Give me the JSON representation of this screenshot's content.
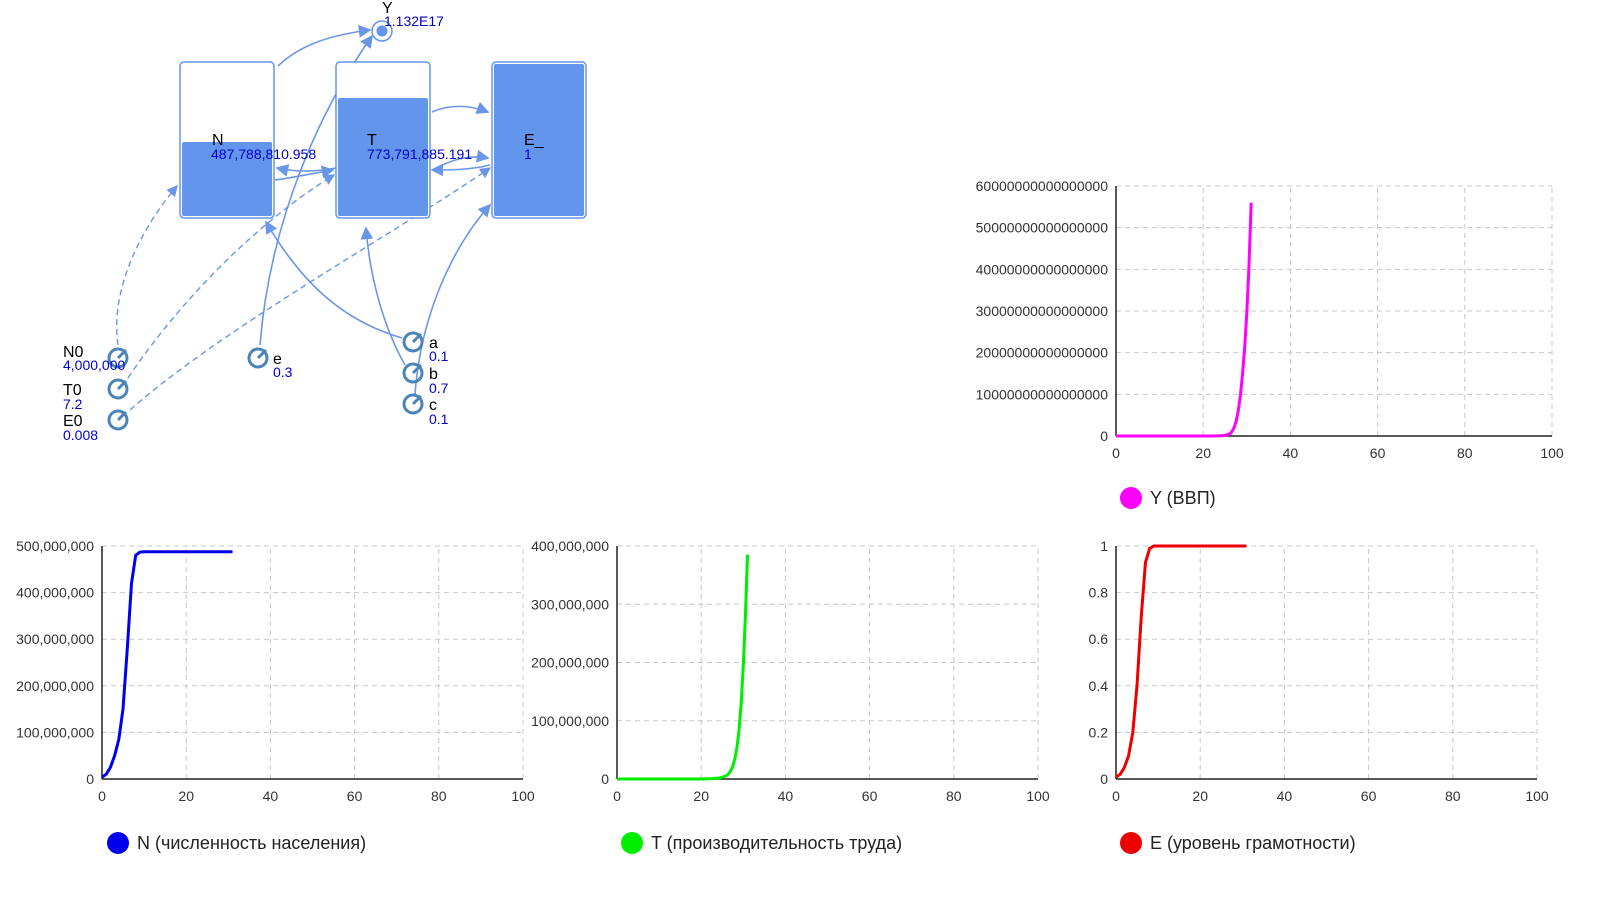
{
  "diagram": {
    "stocks": [
      {
        "id": "N",
        "name": "N",
        "value": "487,788,810.958",
        "fill": 0.5
      },
      {
        "id": "T",
        "name": "T",
        "value": "773,791,885.191",
        "fill": 0.8
      },
      {
        "id": "E",
        "name": "E_",
        "value": "1",
        "fill": 1.0
      }
    ],
    "aux": {
      "name": "Y",
      "value": "1.132E17"
    },
    "params": [
      {
        "id": "N0",
        "name": "N0",
        "value": "4,000,000"
      },
      {
        "id": "T0",
        "name": "T0",
        "value": "7.2"
      },
      {
        "id": "E0",
        "name": "E0",
        "value": "0.008"
      },
      {
        "id": "e",
        "name": "e",
        "value": "0.3"
      },
      {
        "id": "a",
        "name": "a",
        "value": "0.1"
      },
      {
        "id": "b",
        "name": "b",
        "value": "0.7"
      },
      {
        "id": "c",
        "name": "c",
        "value": "0.1"
      }
    ],
    "colors": {
      "link": "#6a96e8",
      "stock_fill": "#6495ed",
      "stock_border": "#6495ed",
      "value_text": "#0000cc",
      "param_icon": "#4a84b8"
    }
  },
  "chart_data": [
    {
      "id": "Y",
      "type": "line",
      "legend": "Y (ВВП)",
      "color": "#ff00ff",
      "xlim": [
        0,
        100
      ],
      "ylim": [
        0,
        60000000000000000
      ],
      "x_ticks": [
        0,
        20,
        40,
        60,
        80,
        100
      ],
      "y_ticks": [
        0,
        10000000000000000,
        20000000000000000,
        30000000000000000,
        40000000000000000,
        50000000000000000,
        60000000000000000
      ],
      "y_tick_labels": [
        "0",
        "10000000000000000",
        "20000000000000000",
        "30000000000000000",
        "40000000000000000",
        "50000000000000000",
        "60000000000000000"
      ],
      "grid": true,
      "x": [
        0,
        10,
        20,
        22,
        24,
        25,
        26,
        26.5,
        27,
        27.5,
        28,
        28.5,
        29,
        29.5,
        30,
        30.5,
        31
      ],
      "y": [
        0,
        0,
        0,
        5000000000000,
        40000000000000,
        150000000000000,
        500000000000000,
        900000000000000,
        1800000000000000,
        3300000000000000,
        5800000000000000,
        9500000000000000,
        14500000000000000,
        21000000000000000,
        29500000000000000,
        41000000000000000,
        56000000000000000
      ]
    },
    {
      "id": "N",
      "type": "line",
      "legend": "N (численность населения)",
      "color": "#0000ee",
      "xlim": [
        0,
        100
      ],
      "ylim": [
        0,
        500000000
      ],
      "x_ticks": [
        0,
        20,
        40,
        60,
        80,
        100
      ],
      "y_ticks": [
        0,
        100000000,
        200000000,
        300000000,
        400000000,
        500000000
      ],
      "y_tick_labels": [
        "0",
        "100,000,000",
        "200,000,000",
        "300,000,000",
        "400,000,000",
        "500,000,000"
      ],
      "grid": true,
      "x": [
        0,
        1,
        2,
        3,
        4,
        5,
        6,
        7,
        8,
        9,
        10,
        15,
        20,
        25,
        31
      ],
      "y": [
        4000000,
        10000000,
        25000000,
        50000000,
        85000000,
        150000000,
        280000000,
        420000000,
        480000000,
        487000000,
        487700000,
        487788000,
        487788810,
        487788810,
        487788810
      ]
    },
    {
      "id": "T",
      "type": "line",
      "legend": "T (производительность труда)",
      "color": "#00ee00",
      "xlim": [
        0,
        100
      ],
      "ylim": [
        0,
        400000000
      ],
      "x_ticks": [
        0,
        20,
        40,
        60,
        80,
        100
      ],
      "y_ticks": [
        0,
        100000000,
        200000000,
        300000000,
        400000000
      ],
      "y_tick_labels": [
        "0",
        "100,000,000",
        "200,000,000",
        "300,000,000",
        "400,000,000"
      ],
      "grid": true,
      "x": [
        0,
        10,
        20,
        22,
        24,
        25,
        26,
        26.5,
        27,
        27.5,
        28,
        28.5,
        29,
        29.5,
        30,
        30.5,
        31
      ],
      "y": [
        7.2,
        1000,
        50000,
        300000,
        1500000,
        3000000,
        6000000,
        9000000,
        14000000,
        22000000,
        35000000,
        55000000,
        85000000,
        130000000,
        195000000,
        280000000,
        385000000
      ]
    },
    {
      "id": "E",
      "type": "line",
      "legend": "E (уровень грамотности)",
      "color": "#ee0000",
      "xlim": [
        0,
        100
      ],
      "ylim": [
        0,
        1
      ],
      "x_ticks": [
        0,
        20,
        40,
        60,
        80,
        100
      ],
      "y_ticks": [
        0,
        0.2,
        0.4,
        0.6,
        0.8,
        1
      ],
      "y_tick_labels": [
        "0",
        "0.2",
        "0.4",
        "0.6",
        "0.8",
        "1"
      ],
      "grid": true,
      "x": [
        0,
        1,
        2,
        3,
        4,
        5,
        6,
        7,
        8,
        9,
        10,
        15,
        20,
        25,
        31
      ],
      "y": [
        0.008,
        0.02,
        0.05,
        0.1,
        0.2,
        0.4,
        0.7,
        0.93,
        0.99,
        1,
        1,
        1,
        1,
        1,
        1
      ]
    }
  ]
}
